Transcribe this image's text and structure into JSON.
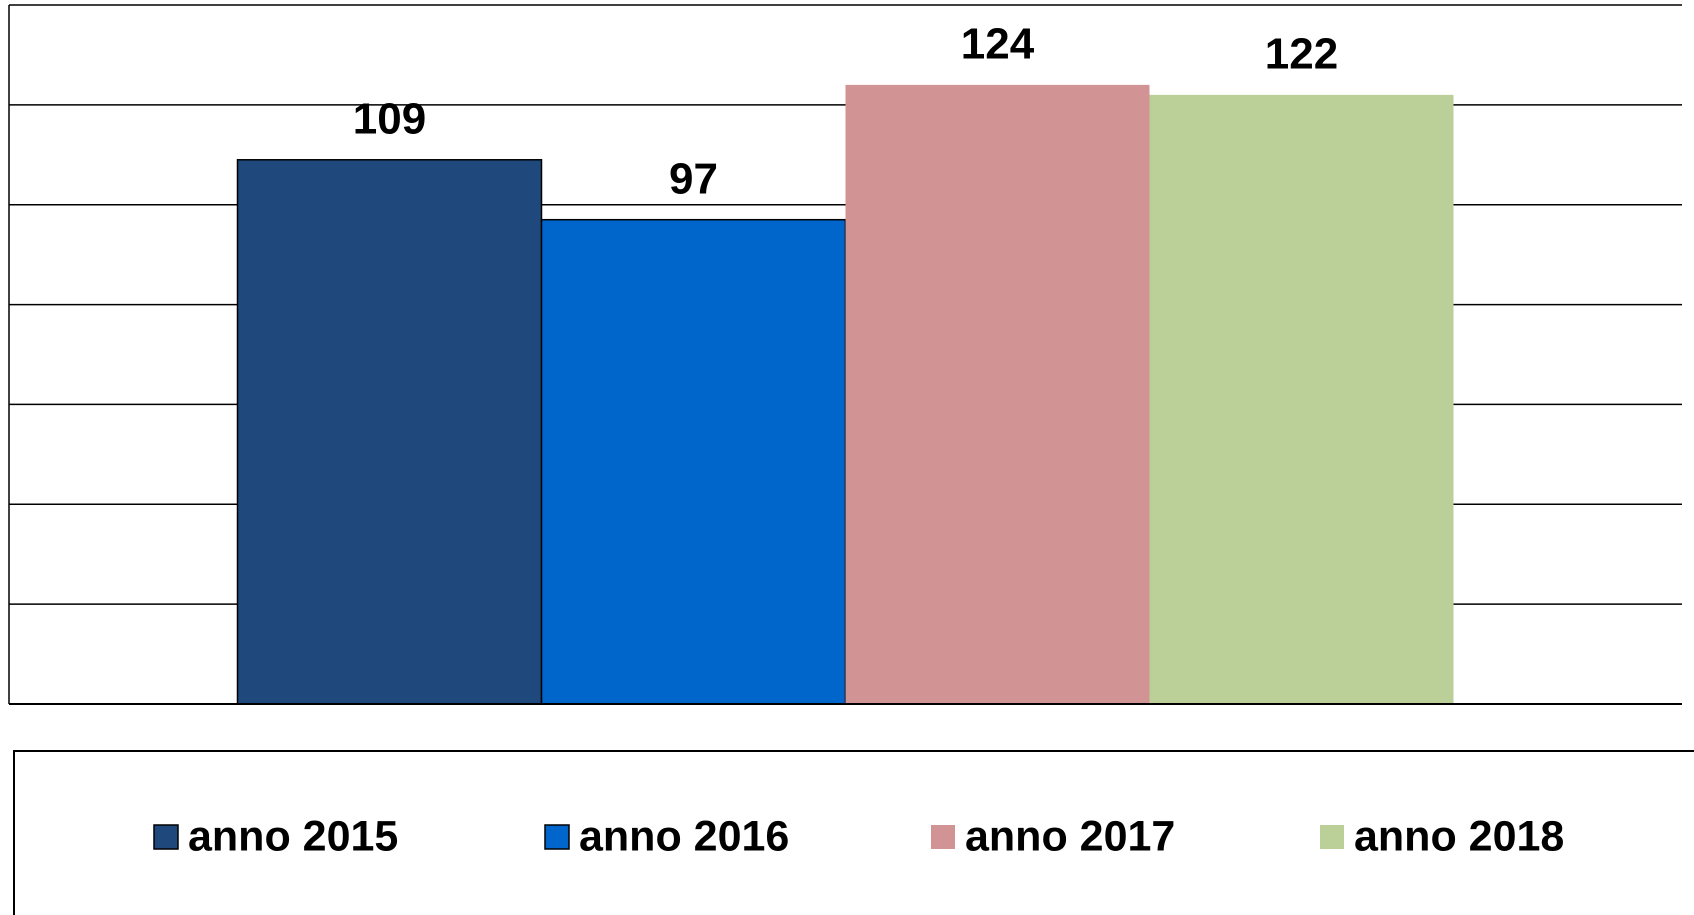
{
  "chart_data": {
    "type": "bar",
    "series": [
      {
        "name": "anno 2015",
        "color": "#1f497d",
        "values": [
          109
        ]
      },
      {
        "name": "anno 2016",
        "color": "#0066cc",
        "values": [
          97
        ]
      },
      {
        "name": "anno 2017",
        "color": "#d19393",
        "values": [
          124
        ]
      },
      {
        "name": "anno 2018",
        "color": "#bbcf98",
        "values": [
          122
        ]
      }
    ],
    "ylim": [
      0,
      140
    ],
    "yticks": [
      0,
      20,
      40,
      60,
      80,
      100,
      120,
      140
    ],
    "grid": true,
    "legend": "bottom"
  }
}
